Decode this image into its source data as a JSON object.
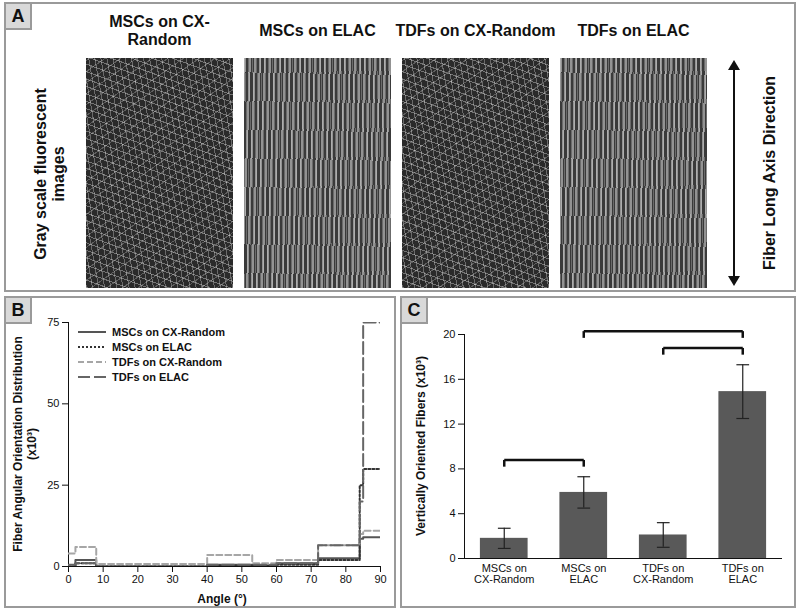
{
  "image_panel": {
    "panel_label": "A",
    "row_label": "Gray scale fluorescent images",
    "arrow_label": "Fiber Long Axis Direction",
    "images": [
      "MSCs on CX-Random",
      "MSCs on ELAC",
      "TDFs on CX-Random",
      "TDFs on ELAC"
    ]
  },
  "chart_data": [
    {
      "panel_label": "B",
      "type": "line",
      "x_label": "Angle (°)",
      "y_label": "Fiber Angular Orientation Distribution (x10³)",
      "x": [
        0,
        2,
        8,
        40,
        53,
        60,
        72,
        84,
        85,
        90
      ],
      "xlim": [
        0,
        90
      ],
      "xticks": [
        0,
        10,
        20,
        30,
        40,
        50,
        60,
        70,
        80,
        90
      ],
      "ylim": [
        0,
        75
      ],
      "yticks": [
        0,
        25,
        50,
        75
      ],
      "legend": "top-left",
      "series": [
        {
          "name": "MSCs on CX-Random",
          "color": "#555555",
          "line_style": "solid",
          "values": [
            0,
            2,
            0,
            0.5,
            0.3,
            1,
            2.5,
            8.5,
            9,
            9
          ]
        },
        {
          "name": "MSCs on ELAC",
          "color": "#333333",
          "line_style": "dotted",
          "values": [
            0,
            1,
            0,
            0.3,
            0.3,
            0.5,
            2,
            25,
            30,
            30
          ]
        },
        {
          "name": "TDFs on CX-Random",
          "color": "#a6a6a6",
          "line_style": "dashed",
          "values": [
            4,
            6,
            0.8,
            3.5,
            1,
            2,
            6.5,
            10,
            11,
            11
          ]
        },
        {
          "name": "TDFs on ELAC",
          "color": "#666666",
          "line_style": "long_dashed",
          "values": [
            0.5,
            1,
            0,
            0.5,
            0.5,
            1,
            6.5,
            20,
            75,
            75
          ]
        }
      ]
    },
    {
      "panel_label": "C",
      "type": "bar",
      "y_label": "Vertically Oriented Fibers (x10³)",
      "categories": [
        "MSCs on CX-Random",
        "MSCs on ELAC",
        "TDFs on CX-Random",
        "TDFs on ELAC"
      ],
      "values": [
        1.8,
        5.9,
        2.1,
        14.9
      ],
      "errors": [
        0.9,
        1.4,
        1.1,
        2.4
      ],
      "color": "#595959",
      "ylim": [
        0,
        20
      ],
      "yticks": [
        0,
        4,
        8,
        12,
        16,
        20
      ],
      "brackets": [
        [
          "MSCs on CX-Random",
          "MSCs on ELAC"
        ],
        [
          "MSCs on ELAC",
          "TDFs on ELAC"
        ],
        [
          "TDFs on CX-Random",
          "TDFs on ELAC"
        ]
      ]
    }
  ]
}
